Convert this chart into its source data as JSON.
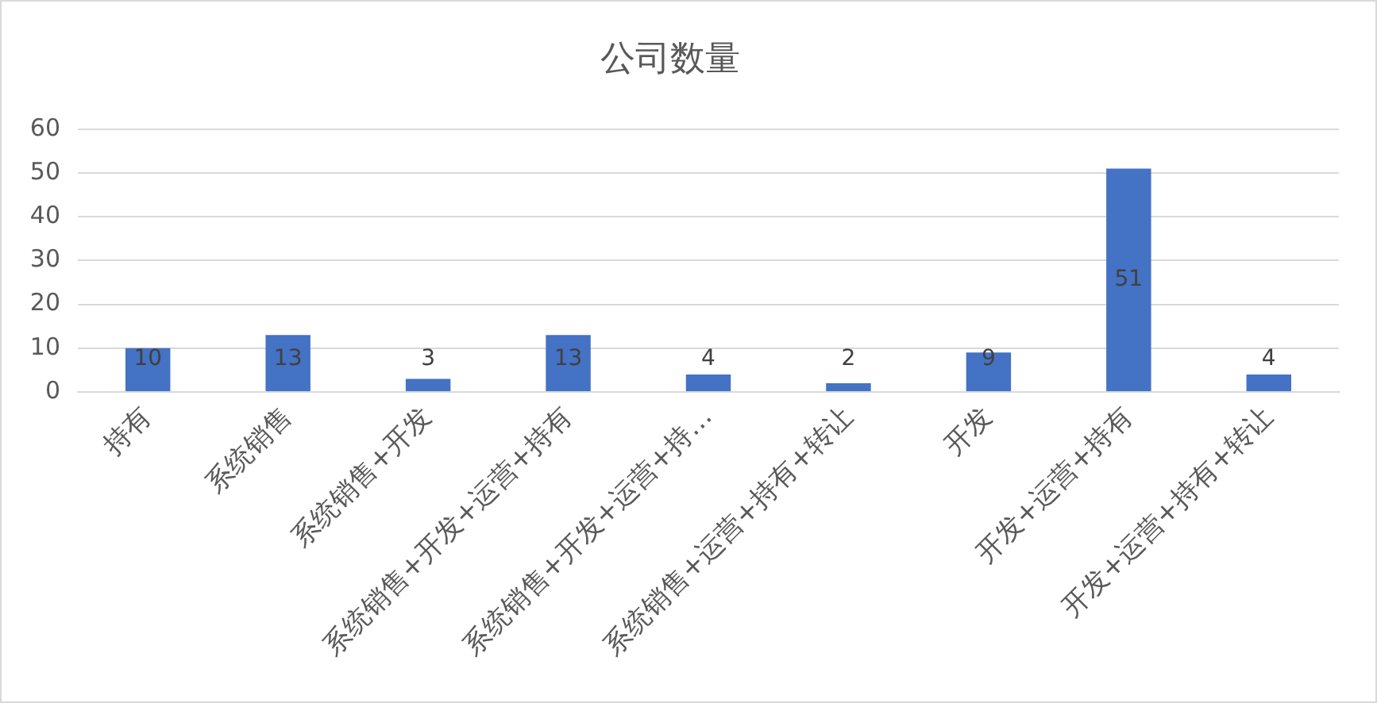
{
  "chart_data": {
    "type": "bar",
    "title": "公司数量",
    "categories": [
      "持有",
      "系统销售",
      "系统销售+开发",
      "系统销售+开发+运营+持有",
      "系统销售+开发+运营+持…",
      "系统销售+运营+持有+转让",
      "开发",
      "开发+运营+持有",
      "开发+运营+持有+转让"
    ],
    "values": [
      10,
      13,
      3,
      13,
      4,
      2,
      9,
      51,
      4
    ],
    "color": "#4472c4",
    "ylim": [
      0,
      60
    ],
    "yticks": [
      0,
      10,
      20,
      30,
      40,
      50,
      60
    ],
    "grid": "y",
    "legend": false,
    "data_labels": true
  }
}
